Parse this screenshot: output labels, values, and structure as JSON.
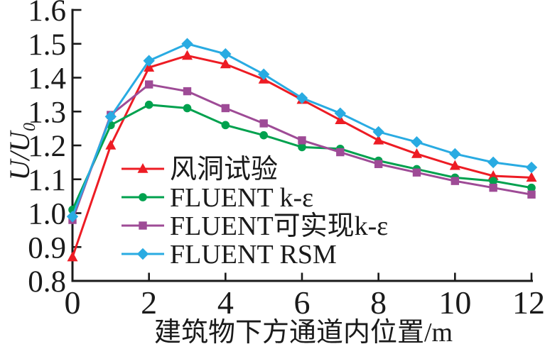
{
  "figure": {
    "background": "#ffffff",
    "text_color": "#1a1a1a",
    "axis_color": "#1a1a1a"
  },
  "chart_data": {
    "type": "line",
    "title": "",
    "xlabel": "建筑物下方通道内位置/m",
    "ylabel": "U/U₀",
    "xlim": [
      0,
      12
    ],
    "ylim": [
      0.8,
      1.6
    ],
    "x_ticks": [
      0,
      2,
      4,
      6,
      8,
      10,
      12
    ],
    "y_ticks": [
      0.8,
      0.9,
      1.0,
      1.1,
      1.2,
      1.3,
      1.4,
      1.5,
      1.6
    ],
    "grid": false,
    "legend_position": "inside-left-middle",
    "x": [
      0,
      1,
      2,
      3,
      4,
      5,
      6,
      7,
      8,
      9,
      10,
      11,
      12
    ],
    "series": [
      {
        "name": "风洞试验",
        "marker": "triangle",
        "color": "#ed1c24",
        "values": [
          0.87,
          1.2,
          1.43,
          1.465,
          1.44,
          1.395,
          1.335,
          1.275,
          1.215,
          1.175,
          1.14,
          1.11,
          1.105
        ]
      },
      {
        "name": "FLUENT k-ε",
        "marker": "circle",
        "color": "#00a14e",
        "values": [
          1.01,
          1.26,
          1.32,
          1.31,
          1.26,
          1.23,
          1.195,
          1.19,
          1.155,
          1.13,
          1.105,
          1.095,
          1.075
        ]
      },
      {
        "name": "FLUENT可实现k-ε",
        "marker": "square",
        "color": "#9e4b96",
        "values": [
          0.98,
          1.29,
          1.38,
          1.36,
          1.31,
          1.265,
          1.215,
          1.18,
          1.145,
          1.12,
          1.095,
          1.075,
          1.055
        ]
      },
      {
        "name": "FLUENT RSM",
        "marker": "diamond",
        "color": "#29abe2",
        "values": [
          0.99,
          1.285,
          1.45,
          1.5,
          1.47,
          1.41,
          1.34,
          1.295,
          1.24,
          1.21,
          1.175,
          1.15,
          1.135
        ]
      }
    ]
  }
}
